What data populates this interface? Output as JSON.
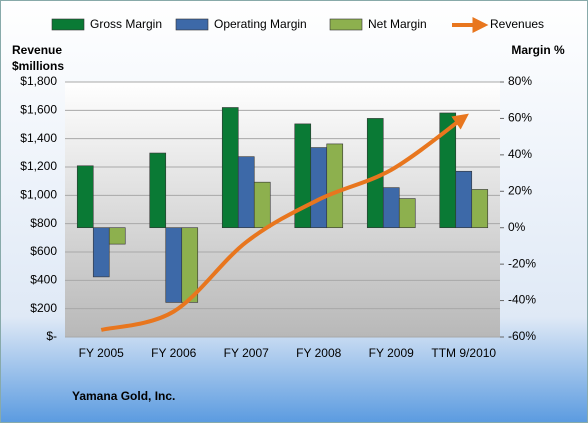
{
  "chart_data": {
    "type": "bar-line",
    "title": "Yamana Gold, Inc.",
    "ylabel": "Revenue",
    "ylabel_unit": "$millions",
    "y2label": "Margin %",
    "categories": [
      "FY 2005",
      "FY 2006",
      "FY 2007",
      "FY 2008",
      "FY 2009",
      "TTM 9/2010"
    ],
    "series": [
      {
        "name": "Gross Margin",
        "color": "#0a7a35",
        "type": "bar",
        "axis": "y2",
        "values": [
          34,
          41,
          66,
          57,
          60,
          63
        ]
      },
      {
        "name": "Operating Margin",
        "color": "#3d69a8",
        "type": "bar",
        "axis": "y2",
        "values": [
          -27,
          -41,
          39,
          44,
          22,
          31
        ]
      },
      {
        "name": "Net Margin",
        "color": "#8db04e",
        "type": "bar",
        "axis": "y2",
        "values": [
          -9,
          -41,
          25,
          46,
          16,
          21
        ]
      },
      {
        "name": "Revenues",
        "color": "#e8761e",
        "type": "line",
        "axis": "y",
        "values": [
          50,
          180,
          670,
          970,
          1180,
          1550
        ]
      }
    ],
    "ylim": [
      0,
      1800
    ],
    "yticks": [
      {
        "value": 0,
        "label": "$-"
      },
      {
        "value": 200,
        "label": "$200"
      },
      {
        "value": 400,
        "label": "$400"
      },
      {
        "value": 600,
        "label": "$600"
      },
      {
        "value": 800,
        "label": "$800"
      },
      {
        "value": 1000,
        "label": "$1,000"
      },
      {
        "value": 1200,
        "label": "$1,200"
      },
      {
        "value": 1400,
        "label": "$1,400"
      },
      {
        "value": 1600,
        "label": "$1,600"
      },
      {
        "value": 1800,
        "label": "$1,800"
      }
    ],
    "y2lim": [
      -60,
      80
    ],
    "y2ticks": [
      {
        "value": -60,
        "label": "-60%"
      },
      {
        "value": -40,
        "label": "-40%"
      },
      {
        "value": -20,
        "label": "-20%"
      },
      {
        "value": 0,
        "label": "0%"
      },
      {
        "value": 20,
        "label": "20%"
      },
      {
        "value": 40,
        "label": "40%"
      },
      {
        "value": 60,
        "label": "60%"
      },
      {
        "value": 80,
        "label": "80%"
      }
    ],
    "grid": true,
    "legend": "top"
  }
}
